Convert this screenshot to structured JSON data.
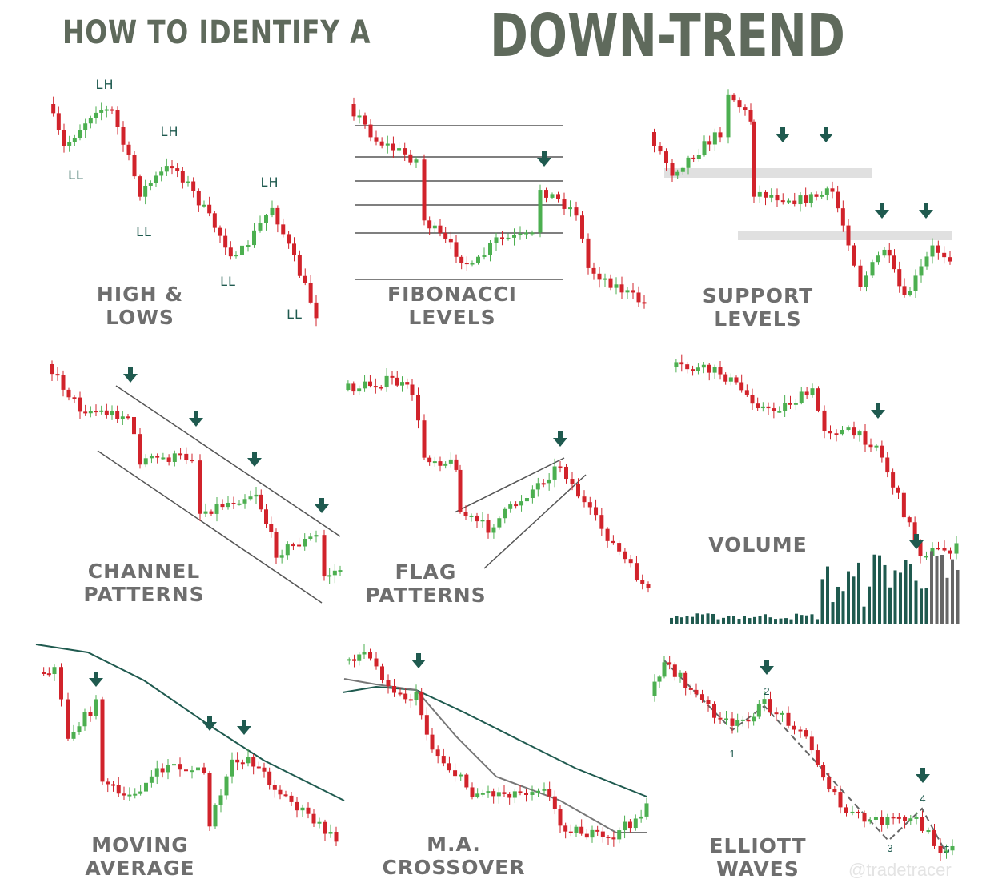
{
  "title": {
    "prefix": "HOW TO IDENTIFY A",
    "emphasis": "DOWN-TREND"
  },
  "panels": [
    {
      "line1": "HIGH &",
      "line2": "LOWS"
    },
    {
      "line1": "FIBONACCI",
      "line2": "LEVELS"
    },
    {
      "line1": "SUPPORT",
      "line2": "LEVELS"
    },
    {
      "line1": "CHANNEL",
      "line2": "PATTERNS"
    },
    {
      "line1": "FLAG",
      "line2": "PATTERNS"
    },
    {
      "line1": "VOLUME",
      "line2": ""
    },
    {
      "line1": "MOVING",
      "line2": "AVERAGE"
    },
    {
      "line1": "M.A.",
      "line2": "CROSSOVER"
    },
    {
      "line1": "ELLIOTT",
      "line2": "WAVES"
    }
  ],
  "annotations": {
    "lh": "LH",
    "ll": "LL"
  },
  "elliott_numbers": [
    "1",
    "2",
    "3",
    "4",
    "5"
  ],
  "watermark": "@tradetracer",
  "colors": {
    "title": "#5f6a5c",
    "bear": "#d1232b",
    "bull": "#4caf50",
    "arrow": "#1f5a4f",
    "label": "#6e6e6e",
    "volume": "#1f5a4f"
  }
}
